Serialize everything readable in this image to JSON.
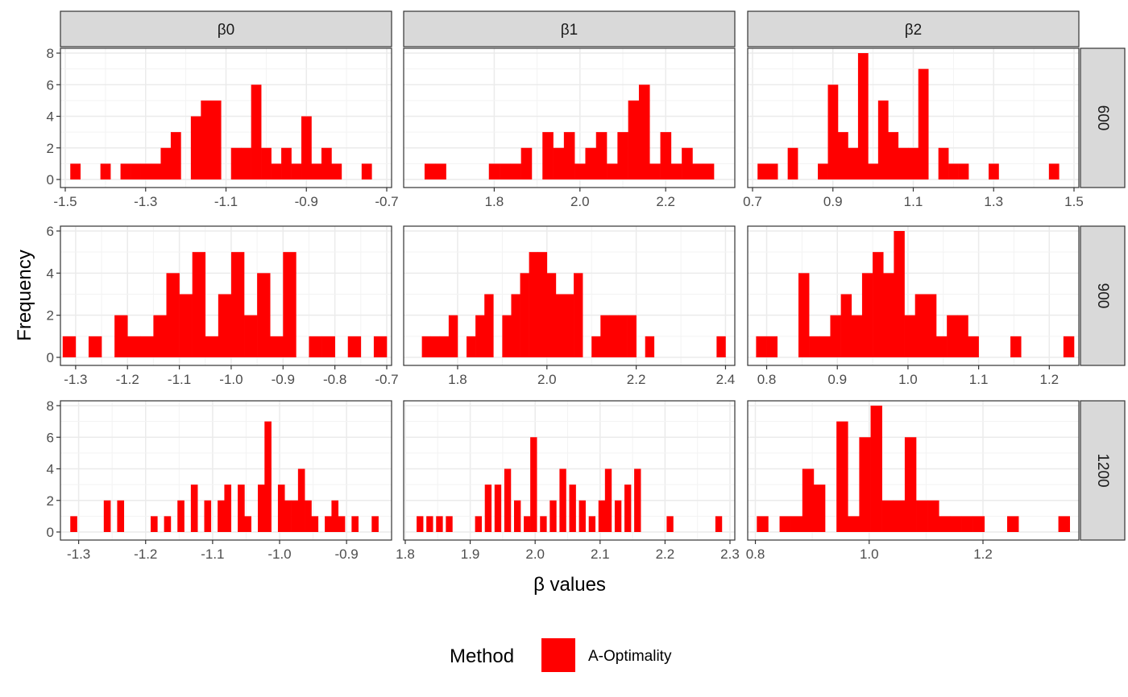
{
  "colors": {
    "fill": "#ff0000",
    "strip_fill": "#d9d9d9",
    "panel_border": "#333333",
    "grid_major": "#ebebeb",
    "grid_minor": "#f3f3f3",
    "tick_text": "#4d4d4d"
  },
  "legend": {
    "title": "Method",
    "label": "A-Optimality"
  },
  "chart_data": {
    "type": "histogram-facet-grid",
    "xlabel": "β values",
    "ylabel": "Frequency",
    "columns": [
      "β0",
      "β1",
      "β2"
    ],
    "rows": [
      "600",
      "900",
      "1200"
    ],
    "facet_scales": "free",
    "grid": true,
    "legend_position": "bottom",
    "panels": [
      {
        "row": "600",
        "col": "β0",
        "xlim": [
          -1.5,
          -0.7
        ],
        "ylim": [
          0,
          8
        ],
        "xticks": [
          "-1.5",
          "-1.3",
          "-1.1",
          "-0.9",
          "-0.7"
        ],
        "yticks": [
          "0",
          "2",
          "4",
          "6",
          "8"
        ],
        "bins": [
          [
            -1.475,
            1
          ],
          [
            -1.4,
            1
          ],
          [
            -1.35,
            1
          ],
          [
            -1.325,
            1
          ],
          [
            -1.3,
            1
          ],
          [
            -1.275,
            1
          ],
          [
            -1.25,
            2
          ],
          [
            -1.225,
            3
          ],
          [
            -1.175,
            4
          ],
          [
            -1.15,
            5
          ],
          [
            -1.125,
            5
          ],
          [
            -1.1,
            0
          ],
          [
            -1.075,
            2
          ],
          [
            -1.05,
            2
          ],
          [
            -1.025,
            6
          ],
          [
            -1.0,
            2
          ],
          [
            -0.975,
            1
          ],
          [
            -0.95,
            2
          ],
          [
            -0.925,
            1
          ],
          [
            -0.9,
            4
          ],
          [
            -0.875,
            1
          ],
          [
            -0.85,
            2
          ],
          [
            -0.825,
            1
          ],
          [
            -0.75,
            1
          ]
        ]
      },
      {
        "row": "600",
        "col": "β1",
        "xlim": [
          1.6,
          2.35
        ],
        "ylim": [
          0,
          8
        ],
        "xticks": [
          "1.8",
          "2.0",
          "2.2"
        ],
        "yticks": [],
        "bins": [
          [
            1.65,
            1
          ],
          [
            1.675,
            1
          ],
          [
            1.8,
            1
          ],
          [
            1.825,
            1
          ],
          [
            1.85,
            1
          ],
          [
            1.875,
            2
          ],
          [
            1.9,
            0
          ],
          [
            1.925,
            3
          ],
          [
            1.95,
            2
          ],
          [
            1.975,
            3
          ],
          [
            2.0,
            1
          ],
          [
            2.025,
            2
          ],
          [
            2.05,
            3
          ],
          [
            2.075,
            1
          ],
          [
            2.1,
            3
          ],
          [
            2.125,
            5
          ],
          [
            2.15,
            6
          ],
          [
            2.175,
            1
          ],
          [
            2.2,
            3
          ],
          [
            2.225,
            1
          ],
          [
            2.25,
            2
          ],
          [
            2.275,
            1
          ],
          [
            2.3,
            1
          ]
        ]
      },
      {
        "row": "600",
        "col": "β2",
        "xlim": [
          0.7,
          1.5
        ],
        "ylim": [
          0,
          8
        ],
        "xticks": [
          "0.7",
          "0.9",
          "1.1",
          "1.3",
          "1.5"
        ],
        "yticks": [],
        "bins": [
          [
            0.725,
            1
          ],
          [
            0.75,
            1
          ],
          [
            0.8,
            2
          ],
          [
            0.875,
            1
          ],
          [
            0.9,
            6
          ],
          [
            0.925,
            3
          ],
          [
            0.95,
            2
          ],
          [
            0.975,
            8
          ],
          [
            1.0,
            1
          ],
          [
            1.025,
            5
          ],
          [
            1.05,
            3
          ],
          [
            1.075,
            2
          ],
          [
            1.1,
            2
          ],
          [
            1.125,
            7
          ],
          [
            1.175,
            2
          ],
          [
            1.2,
            1
          ],
          [
            1.225,
            1
          ],
          [
            1.3,
            1
          ],
          [
            1.45,
            1
          ]
        ]
      },
      {
        "row": "900",
        "col": "β0",
        "xlim": [
          -1.32,
          -0.7
        ],
        "ylim": [
          0,
          6
        ],
        "xticks": [
          "-1.3",
          "-1.2",
          "-1.1",
          "-1.0",
          "-0.9",
          "-0.8",
          "-0.7"
        ],
        "yticks": [
          "0",
          "2",
          "4",
          "6"
        ],
        "bins": [
          [
            -1.3125,
            1
          ],
          [
            -1.2625,
            1
          ],
          [
            -1.2125,
            2
          ],
          [
            -1.1875,
            1
          ],
          [
            -1.1625,
            1
          ],
          [
            -1.1375,
            2
          ],
          [
            -1.1125,
            4
          ],
          [
            -1.0875,
            3
          ],
          [
            -1.0625,
            5
          ],
          [
            -1.0375,
            1
          ],
          [
            -1.0125,
            3
          ],
          [
            -0.9875,
            5
          ],
          [
            -0.9625,
            2
          ],
          [
            -0.9375,
            4
          ],
          [
            -0.9125,
            1
          ],
          [
            -0.8875,
            5
          ],
          [
            -0.8375,
            1
          ],
          [
            -0.8125,
            1
          ],
          [
            -0.7625,
            1
          ],
          [
            -0.7125,
            1
          ]
        ]
      },
      {
        "row": "900",
        "col": "β1",
        "xlim": [
          1.69,
          2.41
        ],
        "ylim": [
          0,
          6
        ],
        "xticks": [
          "1.8",
          "2.0",
          "2.2",
          "2.4"
        ],
        "yticks": [],
        "bins": [
          [
            1.73,
            1
          ],
          [
            1.75,
            1
          ],
          [
            1.77,
            1
          ],
          [
            1.79,
            2
          ],
          [
            1.83,
            1
          ],
          [
            1.85,
            2
          ],
          [
            1.87,
            3
          ],
          [
            1.91,
            2
          ],
          [
            1.93,
            3
          ],
          [
            1.95,
            4
          ],
          [
            1.97,
            5
          ],
          [
            1.99,
            5
          ],
          [
            2.01,
            4
          ],
          [
            2.03,
            3
          ],
          [
            2.05,
            3
          ],
          [
            2.07,
            4
          ],
          [
            2.11,
            1
          ],
          [
            2.13,
            2
          ],
          [
            2.15,
            2
          ],
          [
            2.17,
            2
          ],
          [
            2.19,
            2
          ],
          [
            2.23,
            1
          ],
          [
            2.29,
            0
          ],
          [
            2.39,
            1
          ]
        ]
      },
      {
        "row": "900",
        "col": "β2",
        "xlim": [
          0.78,
          1.235
        ],
        "ylim": [
          0,
          6
        ],
        "xticks": [
          "0.8",
          "0.9",
          "1.0",
          "1.1",
          "1.2"
        ],
        "yticks": [],
        "bins": [
          [
            0.7925,
            1
          ],
          [
            0.8075,
            1
          ],
          [
            0.8525,
            4
          ],
          [
            0.8675,
            1
          ],
          [
            0.8825,
            1
          ],
          [
            0.8975,
            2
          ],
          [
            0.9125,
            3
          ],
          [
            0.9275,
            2
          ],
          [
            0.9425,
            4
          ],
          [
            0.9575,
            5
          ],
          [
            0.9725,
            4
          ],
          [
            0.9875,
            6
          ],
          [
            1.0025,
            2
          ],
          [
            1.0175,
            3
          ],
          [
            1.0325,
            3
          ],
          [
            1.0475,
            1
          ],
          [
            1.0625,
            2
          ],
          [
            1.0775,
            2
          ],
          [
            1.0925,
            1
          ],
          [
            1.1525,
            1
          ],
          [
            1.2275,
            1
          ]
        ]
      },
      {
        "row": "1200",
        "col": "β0",
        "xlim": [
          -1.32,
          -0.84
        ],
        "ylim": [
          0,
          8
        ],
        "xticks": [
          "-1.3",
          "-1.2",
          "-1.1",
          "-1.0",
          "-0.9"
        ],
        "yticks": [
          "0",
          "2",
          "4",
          "6",
          "8"
        ],
        "bins": [
          [
            -1.3075,
            1
          ],
          [
            -1.2575,
            2
          ],
          [
            -1.2375,
            2
          ],
          [
            -1.1875,
            1
          ],
          [
            -1.1675,
            1
          ],
          [
            -1.1475,
            2
          ],
          [
            -1.1275,
            3
          ],
          [
            -1.1075,
            2
          ],
          [
            -1.0875,
            2
          ],
          [
            -1.0775,
            3
          ],
          [
            -1.0575,
            3
          ],
          [
            -1.0475,
            1
          ],
          [
            -1.0275,
            3
          ],
          [
            -1.0175,
            7
          ],
          [
            -0.9975,
            3
          ],
          [
            -0.9875,
            2
          ],
          [
            -0.9775,
            2
          ],
          [
            -0.9675,
            4
          ],
          [
            -0.9575,
            2
          ],
          [
            -0.9475,
            1
          ],
          [
            -0.9275,
            1
          ],
          [
            -0.9175,
            2
          ],
          [
            -0.9075,
            1
          ],
          [
            -0.8875,
            1
          ],
          [
            -0.8575,
            1
          ]
        ]
      },
      {
        "row": "1200",
        "col": "β1",
        "xlim": [
          1.805,
          2.3
        ],
        "ylim": [
          0,
          8
        ],
        "xticks": [
          "1.8",
          "1.9",
          "2.0",
          "2.1",
          "2.2",
          "2.3"
        ],
        "yticks": [],
        "bins": [
          [
            1.8225,
            1
          ],
          [
            1.8375,
            1
          ],
          [
            1.8525,
            1
          ],
          [
            1.8675,
            1
          ],
          [
            1.9125,
            1
          ],
          [
            1.9275,
            3
          ],
          [
            1.9425,
            3
          ],
          [
            1.9575,
            4
          ],
          [
            1.9725,
            2
          ],
          [
            1.9875,
            1
          ],
          [
            1.9975,
            6
          ],
          [
            2.0125,
            1
          ],
          [
            2.0275,
            2
          ],
          [
            2.0425,
            4
          ],
          [
            2.0575,
            3
          ],
          [
            2.0725,
            2
          ],
          [
            2.0875,
            1
          ],
          [
            2.1025,
            2
          ],
          [
            2.1125,
            4
          ],
          [
            2.1275,
            2
          ],
          [
            2.1425,
            3
          ],
          [
            2.1575,
            4
          ],
          [
            2.2075,
            1
          ],
          [
            2.2825,
            1
          ]
        ]
      },
      {
        "row": "1200",
        "col": "β2",
        "xlim": [
          0.795,
          1.36
        ],
        "ylim": [
          0,
          8
        ],
        "xticks": [
          "0.8",
          "1.0",
          "1.2"
        ],
        "yticks": [],
        "bins": [
          [
            0.8125,
            1
          ],
          [
            0.8525,
            1
          ],
          [
            0.8725,
            1
          ],
          [
            0.8925,
            4
          ],
          [
            0.9125,
            3
          ],
          [
            0.9325,
            0
          ],
          [
            0.9525,
            7
          ],
          [
            0.9725,
            1
          ],
          [
            0.9925,
            6
          ],
          [
            1.0125,
            8
          ],
          [
            1.0325,
            2
          ],
          [
            1.0525,
            2
          ],
          [
            1.0725,
            6
          ],
          [
            1.0925,
            2
          ],
          [
            1.1125,
            2
          ],
          [
            1.1325,
            1
          ],
          [
            1.1525,
            1
          ],
          [
            1.1725,
            1
          ],
          [
            1.1925,
            1
          ],
          [
            1.2525,
            1
          ],
          [
            1.3425,
            1
          ]
        ]
      }
    ]
  }
}
